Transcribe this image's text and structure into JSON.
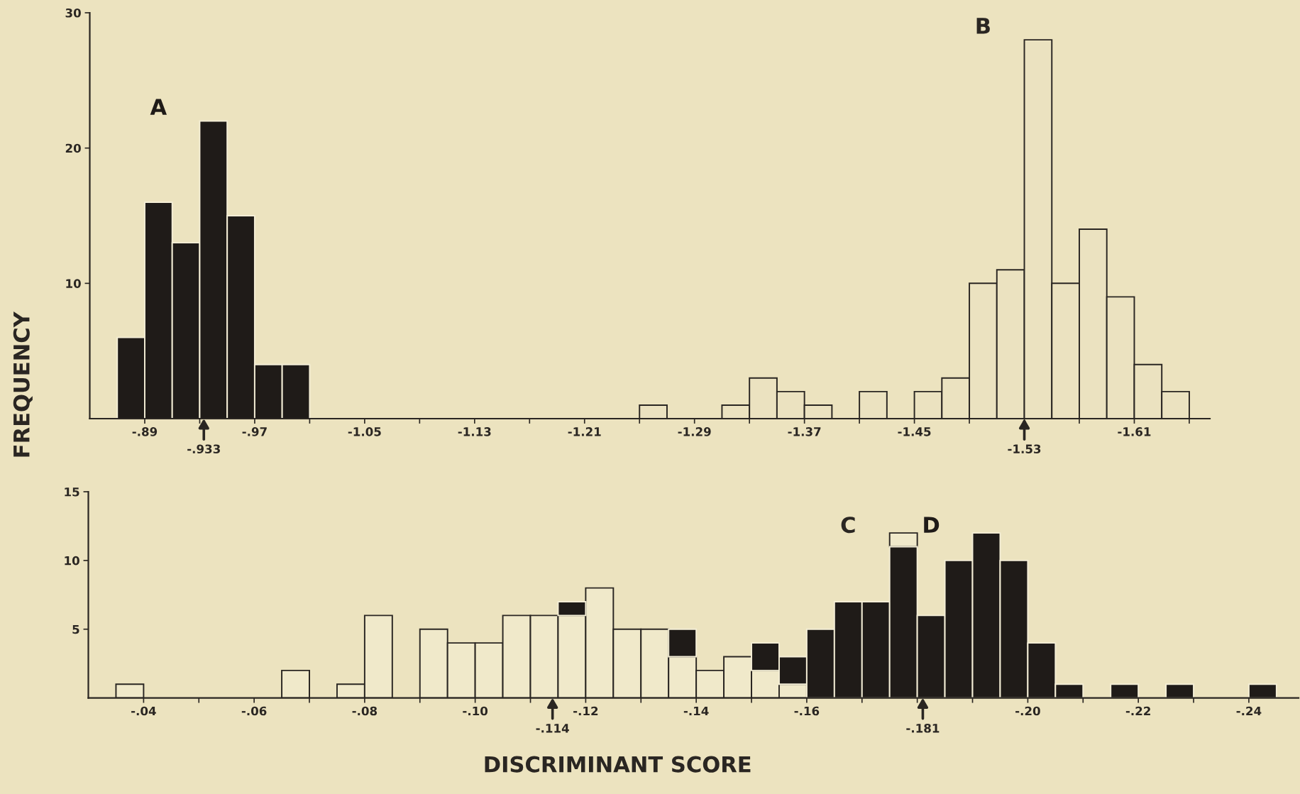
{
  "chart_data": [
    {
      "type": "histogram",
      "ylabel": "FREQUENCY",
      "bins": [
        -0.87,
        -0.89,
        -0.91,
        -0.93,
        -0.95,
        -0.97,
        -0.99,
        -1.01,
        -1.03,
        -1.05,
        -1.07,
        -1.09,
        -1.11,
        -1.13,
        -1.15,
        -1.17,
        -1.19,
        -1.21,
        -1.23,
        -1.25,
        -1.27,
        -1.29,
        -1.31,
        -1.33,
        -1.35,
        -1.37,
        -1.39,
        -1.41,
        -1.43,
        -1.45,
        -1.47,
        -1.49,
        -1.51,
        -1.53,
        -1.55,
        -1.57,
        -1.59,
        -1.61,
        -1.63,
        -1.65
      ],
      "series": [
        {
          "name": "A",
          "color": "#1f1b18",
          "values": [
            6,
            16,
            13,
            22,
            15,
            4,
            4,
            0,
            0,
            0,
            0,
            0,
            0,
            0,
            0,
            0,
            0,
            0,
            0,
            0,
            0,
            0,
            0,
            0,
            0,
            0,
            0,
            0,
            0,
            0,
            0,
            0,
            0,
            0,
            0,
            0,
            0,
            0,
            0
          ]
        },
        {
          "name": "B",
          "color": "#ebe2c0",
          "values": [
            0,
            0,
            0,
            0,
            0,
            0,
            0,
            0,
            0,
            0,
            0,
            0,
            0,
            0,
            0,
            0,
            0,
            0,
            0,
            1,
            0,
            0,
            1,
            3,
            2,
            1,
            0,
            2,
            0,
            2,
            3,
            10,
            11,
            28,
            10,
            14,
            9,
            4,
            2
          ]
        }
      ],
      "xlim": [
        -0.85,
        -1.665
      ],
      "ylim": [
        0,
        30
      ],
      "yticks": [
        10,
        20,
        30
      ],
      "xticks": [
        {
          "value": -0.89,
          "label": "-.89"
        },
        {
          "value": -0.93,
          "label": null
        },
        {
          "value": -0.97,
          "label": "-.97"
        },
        {
          "value": -1.01,
          "label": null
        },
        -1.05,
        {
          "value": -1.09,
          "label": null
        },
        -1.13,
        {
          "value": -1.17,
          "label": null
        },
        -1.21,
        {
          "value": -1.25,
          "label": null
        },
        -1.29,
        {
          "value": -1.33,
          "label": null
        },
        -1.37,
        {
          "value": -1.41,
          "label": null
        },
        -1.45,
        {
          "value": -1.49,
          "label": null
        },
        {
          "value": -1.53,
          "label": null
        },
        {
          "value": -1.57,
          "label": null
        },
        -1.61,
        {
          "value": -1.65,
          "label": null
        }
      ],
      "annotations": [
        {
          "text": "-.933",
          "x": -0.933,
          "y": 0
        },
        {
          "text": "-1.53",
          "x": -1.53,
          "y": 0
        }
      ],
      "grid": false,
      "legend": false
    },
    {
      "type": "histogram",
      "xlabel": "DISCRIMINANT SCORE",
      "bins": [
        -0.035,
        -0.04,
        -0.045,
        -0.05,
        -0.055,
        -0.06,
        -0.065,
        -0.07,
        -0.075,
        -0.08,
        -0.085,
        -0.09,
        -0.095,
        -0.1,
        -0.105,
        -0.11,
        -0.115,
        -0.12,
        -0.125,
        -0.13,
        -0.135,
        -0.14,
        -0.145,
        -0.15,
        -0.155,
        -0.16,
        -0.165,
        -0.17,
        -0.175,
        -0.18,
        -0.185,
        -0.19,
        -0.195,
        -0.2,
        -0.205,
        -0.21,
        -0.215,
        -0.22,
        -0.225,
        -0.23,
        -0.235,
        -0.24,
        -0.245
      ],
      "series": [
        {
          "name": "C",
          "color": "#f0e9ca",
          "values": [
            1,
            0,
            0,
            0,
            0,
            0,
            2,
            0,
            1,
            6,
            0,
            5,
            4,
            4,
            6,
            6,
            6,
            8,
            5,
            5,
            3,
            2,
            3,
            2,
            1,
            0,
            0,
            0,
            1,
            0,
            0,
            0,
            0,
            0,
            0,
            0,
            0,
            0,
            0,
            0,
            0,
            0
          ],
          "base": [
            0,
            null,
            null,
            null,
            null,
            null,
            0,
            null,
            0,
            0,
            null,
            0,
            0,
            0,
            0,
            0,
            0,
            0,
            0,
            0,
            0,
            0,
            0,
            0,
            0,
            null,
            null,
            null,
            11,
            null,
            null,
            null,
            null,
            null,
            null,
            null,
            null,
            null,
            null,
            null,
            null,
            null
          ]
        },
        {
          "name": "D",
          "color": "#1f1b18",
          "values": [
            0,
            0,
            0,
            0,
            0,
            0,
            0,
            0,
            0,
            0,
            0,
            0,
            0,
            0,
            0,
            0,
            1,
            0,
            0,
            0,
            2,
            0,
            0,
            2,
            2,
            5,
            7,
            7,
            11,
            6,
            10,
            12,
            10,
            4,
            1,
            0,
            1,
            0,
            1,
            0,
            0,
            1
          ],
          "base": [
            null,
            null,
            null,
            null,
            null,
            null,
            null,
            null,
            null,
            null,
            null,
            null,
            null,
            null,
            null,
            null,
            6,
            null,
            null,
            null,
            3,
            null,
            null,
            2,
            1,
            0,
            0,
            0,
            0,
            0,
            0,
            0,
            0,
            0,
            0,
            null,
            0,
            null,
            0,
            null,
            null,
            0
          ]
        }
      ],
      "xlim": [
        -0.03,
        -0.249
      ],
      "ylim": [
        0,
        15
      ],
      "yticks": [
        5,
        10,
        15
      ],
      "xticks": [
        {
          "value": -0.04,
          "label": "-.04"
        },
        {
          "value": -0.05,
          "label": null
        },
        {
          "value": -0.06,
          "label": "-.06"
        },
        {
          "value": -0.07,
          "label": null
        },
        {
          "value": -0.08,
          "label": "-.08"
        },
        {
          "value": -0.09,
          "label": null
        },
        {
          "value": -0.1,
          "label": "-.10"
        },
        {
          "value": -0.11,
          "label": null
        },
        {
          "value": -0.12,
          "label": "-.12"
        },
        {
          "value": -0.13,
          "label": null
        },
        {
          "value": -0.14,
          "label": "-.14"
        },
        {
          "value": -0.15,
          "label": null
        },
        {
          "value": -0.16,
          "label": "-.16"
        },
        {
          "value": -0.17,
          "label": null
        },
        {
          "value": -0.18,
          "label": null
        },
        {
          "value": -0.19,
          "label": null
        },
        {
          "value": -0.2,
          "label": "-.20"
        },
        {
          "value": -0.21,
          "label": null
        },
        {
          "value": -0.22,
          "label": "-.22"
        },
        {
          "value": -0.23,
          "label": null
        },
        {
          "value": -0.24,
          "label": "-.24"
        }
      ],
      "annotations": [
        {
          "text": "-.114",
          "x": -0.114,
          "y": 0
        },
        {
          "text": "-.181",
          "x": -0.181,
          "y": 0
        }
      ],
      "grid": false,
      "legend": false
    }
  ]
}
